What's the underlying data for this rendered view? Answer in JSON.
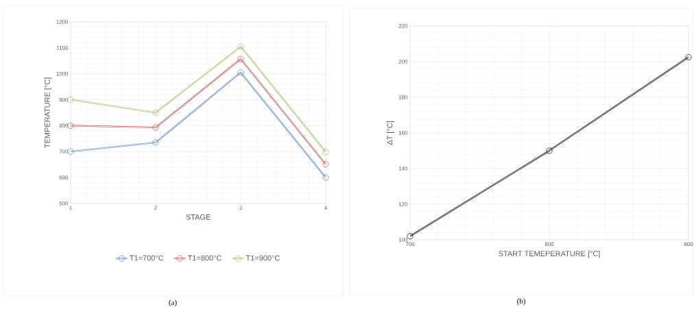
{
  "chart_data": [
    {
      "type": "line",
      "xlabel": "STAGE",
      "ylabel": "TEMPERATURE [°C]",
      "x": [
        1,
        2,
        3,
        4
      ],
      "xlim": [
        1,
        4
      ],
      "xticks": [
        1,
        2,
        3,
        4
      ],
      "ylim": [
        500,
        1200
      ],
      "yticks": [
        500,
        600,
        700,
        800,
        900,
        1000,
        1100,
        1200
      ],
      "grid": true,
      "legend": "bottom",
      "marker": "circle",
      "annotations": [
        "(a)"
      ],
      "series": [
        {
          "name": "T1=700°C",
          "color": "#4f81bd",
          "values": [
            700,
            735,
            1005,
            600
          ]
        },
        {
          "name": "T1=800°C",
          "color": "#c0504d",
          "values": [
            800,
            793,
            1057,
            651
          ]
        },
        {
          "name": "T1=900°C",
          "color": "#9bbb59",
          "values": [
            900,
            850,
            1105,
            699
          ]
        }
      ]
    },
    {
      "type": "line",
      "xlabel": "START TEMEPERATURE [°C]",
      "ylabel": "ΔT [°C]",
      "x": [
        700,
        800,
        900
      ],
      "xlim": [
        700,
        900
      ],
      "xticks": [
        700,
        800,
        900
      ],
      "ylim": [
        100,
        220
      ],
      "yticks": [
        100,
        120,
        140,
        160,
        180,
        200,
        220
      ],
      "grid": true,
      "marker": "circle",
      "annotations": [
        "(b)"
      ],
      "series": [
        {
          "color": "#000000",
          "values": [
            102,
            150,
            202.5
          ]
        }
      ]
    }
  ]
}
